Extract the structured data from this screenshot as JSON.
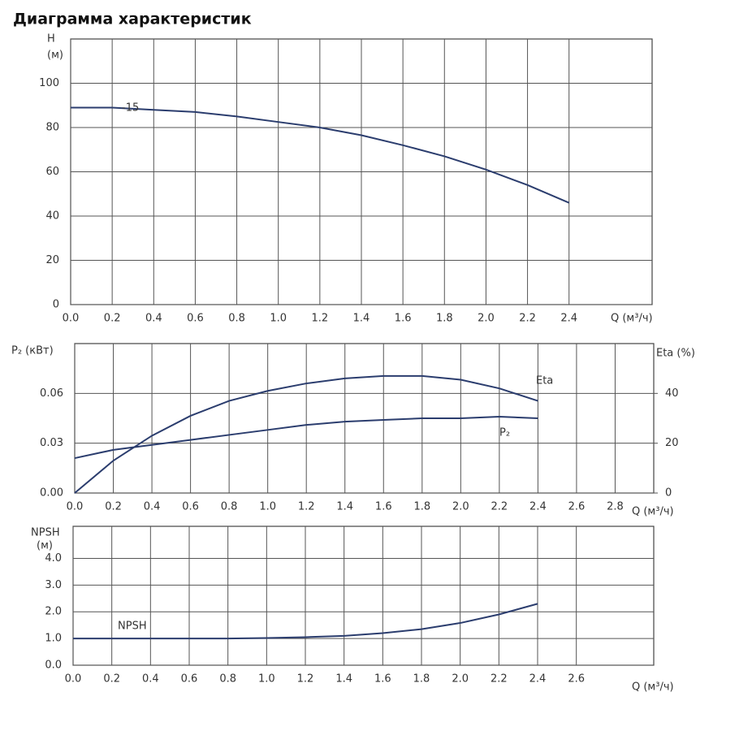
{
  "title": "Диаграмма характеристик",
  "chart_data": [
    {
      "type": "line",
      "ylabel": "H",
      "yunit": "(м)",
      "xlabel": "Q (м³/ч)",
      "x": [
        0,
        0.2,
        0.4,
        0.6,
        0.8,
        1.0,
        1.2,
        1.4,
        1.6,
        1.8,
        2.0,
        2.2,
        2.4
      ],
      "series": [
        {
          "name": "-15",
          "color": "#2b3d6e",
          "values": [
            89,
            89,
            88,
            87,
            85,
            82.5,
            80,
            76.5,
            72,
            67,
            61,
            54,
            46
          ]
        }
      ],
      "xlim": [
        0,
        2.8
      ],
      "ylim": [
        0,
        120
      ],
      "xticks": [
        {
          "value": 0,
          "label": "0.0"
        },
        0.2,
        0.4,
        0.6,
        0.8,
        {
          "value": 1,
          "label": "1.0"
        },
        1.2,
        1.4,
        1.6,
        1.8,
        {
          "value": 2,
          "label": "2.0"
        },
        2.2,
        2.4
      ],
      "yticks": [
        0,
        20,
        40,
        60,
        80,
        100
      ],
      "grid": true
    },
    {
      "type": "line",
      "ylabel": "P₂ (кВт)",
      "y2label": "Eta (%)",
      "xlabel": "Q (м³/ч)",
      "x": [
        0,
        0.2,
        0.4,
        0.6,
        0.8,
        1.0,
        1.2,
        1.4,
        1.6,
        1.8,
        2.0,
        2.2,
        2.4
      ],
      "series": [
        {
          "name": "Eta",
          "color": "#2b3d6e",
          "axis": "y2",
          "values": [
            0,
            13,
            23,
            31,
            37,
            41,
            44,
            46,
            47,
            47,
            45.5,
            42,
            37
          ]
        },
        {
          "name": "P₂",
          "color": "#2b3d6e",
          "values": [
            0.021,
            0.026,
            0.029,
            0.032,
            0.035,
            0.038,
            0.041,
            0.043,
            0.044,
            0.045,
            0.045,
            0.046,
            0.045
          ]
        }
      ],
      "xlim": [
        0,
        3.0
      ],
      "ylim": [
        0,
        0.09
      ],
      "y2lim": [
        0,
        60
      ],
      "xticks": [
        {
          "value": 0,
          "label": "0.0"
        },
        0.2,
        0.4,
        0.6,
        0.8,
        {
          "value": 1,
          "label": "1.0"
        },
        1.2,
        1.4,
        1.6,
        1.8,
        {
          "value": 2,
          "label": "2.0"
        },
        2.2,
        2.4,
        2.6,
        2.8
      ],
      "yticks": [
        {
          "value": 0,
          "label": "0.00"
        },
        0.03,
        0.06
      ],
      "y2ticks": [
        0,
        20,
        40
      ],
      "grid": true
    },
    {
      "type": "line",
      "ylabel": "NPSH",
      "yunit": "(м)",
      "xlabel": "Q (м³/ч)",
      "x": [
        0,
        0.2,
        0.4,
        0.6,
        0.8,
        1.0,
        1.2,
        1.4,
        1.6,
        1.8,
        2.0,
        2.2,
        2.4
      ],
      "series": [
        {
          "name": "NPSH",
          "color": "#2b3d6e",
          "values": [
            1.0,
            1.0,
            1.0,
            1.0,
            1.0,
            1.02,
            1.05,
            1.1,
            1.2,
            1.35,
            1.58,
            1.9,
            2.3
          ]
        }
      ],
      "xlim": [
        0,
        3.0
      ],
      "ylim": [
        0,
        5.2
      ],
      "xticks": [
        {
          "value": 0,
          "label": "0.0"
        },
        0.2,
        0.4,
        0.6,
        0.8,
        {
          "value": 1,
          "label": "1.0"
        },
        1.2,
        1.4,
        1.6,
        1.8,
        {
          "value": 2,
          "label": "2.0"
        },
        2.2,
        2.4,
        2.6
      ],
      "yticks": [
        {
          "value": 0,
          "label": "0.0"
        },
        {
          "value": 1,
          "label": "1.0"
        },
        {
          "value": 2,
          "label": "2.0"
        },
        {
          "value": 3,
          "label": "3.0"
        },
        {
          "value": 4,
          "label": "4.0"
        }
      ],
      "grid": true
    }
  ]
}
